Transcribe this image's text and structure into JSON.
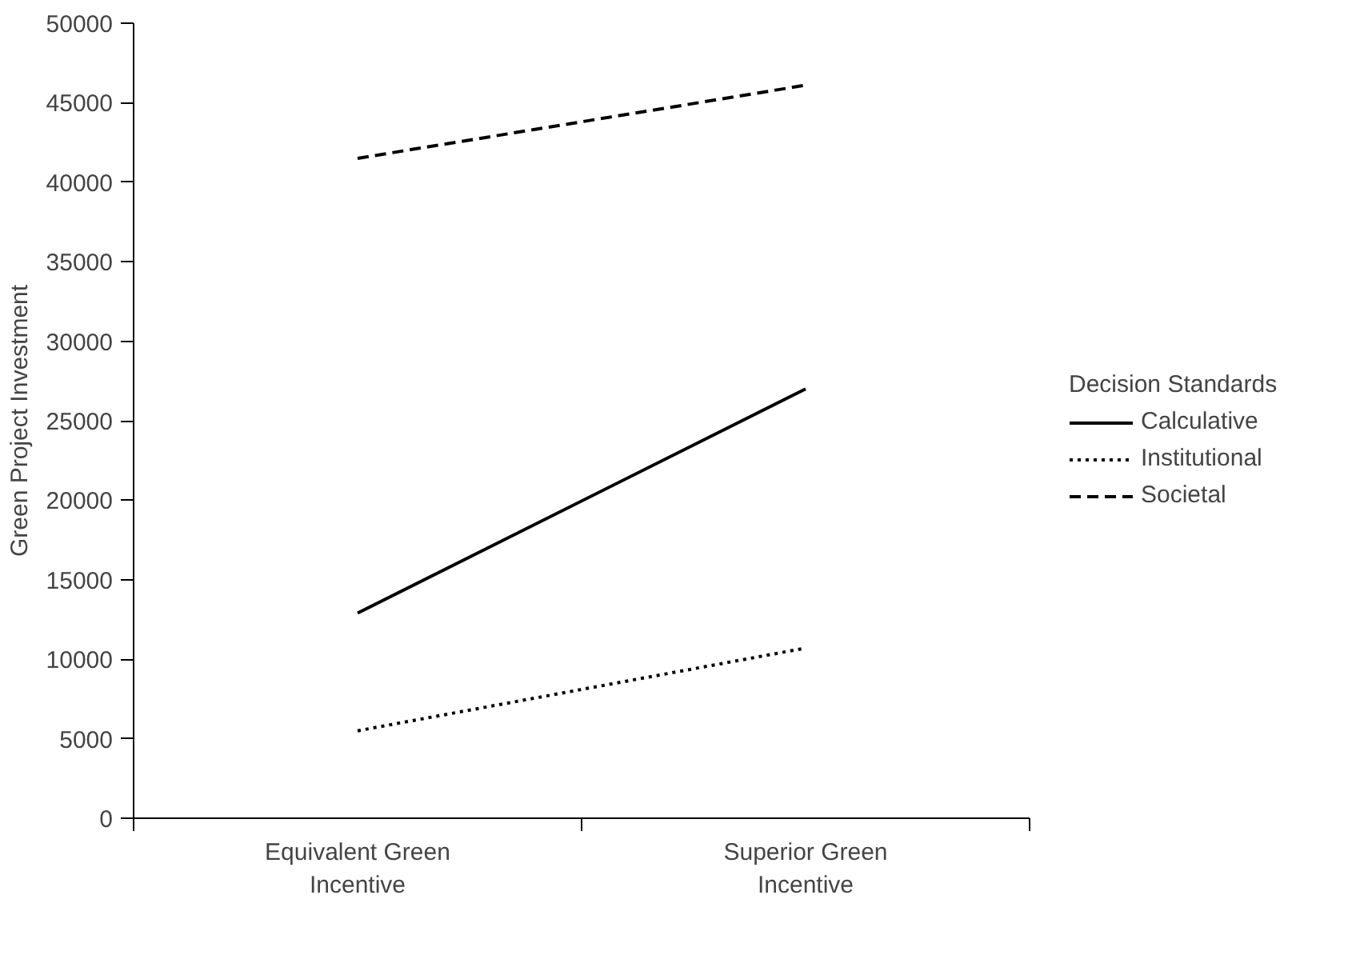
{
  "chart_data": {
    "type": "line",
    "ylabel": "Green Project Investment",
    "legend_title": "Decision Standards",
    "legend": "right",
    "grid": false,
    "marker": "none",
    "categories": [
      "Equivalent Green Incentive",
      "Superior Green Incentive"
    ],
    "ylim": [
      0,
      50000
    ],
    "yticks": [
      0,
      5000,
      10000,
      15000,
      20000,
      25000,
      30000,
      35000,
      40000,
      45000,
      50000
    ],
    "series": [
      {
        "name": "Calculative",
        "color": "#000000",
        "line_style": "solid",
        "values": [
          12900,
          27000
        ]
      },
      {
        "name": "Institutional",
        "color": "#000000",
        "line_style": "dotted",
        "values": [
          5500,
          10700
        ]
      },
      {
        "name": "Societal",
        "color": "#000000",
        "line_style": "dashed",
        "values": [
          41500,
          46100
        ]
      }
    ]
  }
}
